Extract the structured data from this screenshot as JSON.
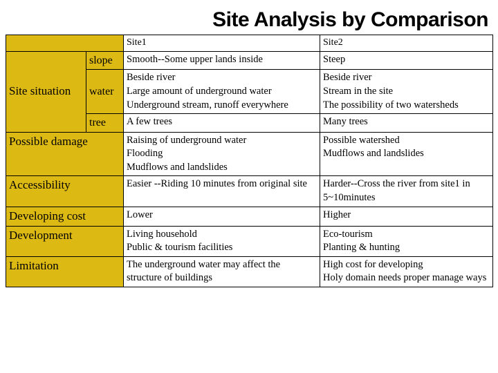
{
  "title": "Site Analysis by Comparison",
  "colors": {
    "header_bg": "#ddb914",
    "border": "#000000",
    "page_bg": "#ffffff",
    "text": "#000000"
  },
  "columns": {
    "site1": "Site1",
    "site2": "Site2"
  },
  "rows": {
    "site_situation": {
      "label": "Site situation",
      "sub": {
        "slope": {
          "label": "slope",
          "site1": "Smooth--Some upper lands inside",
          "site2": "Steep"
        },
        "water": {
          "label": "water",
          "site1": "Beside river\nLarge amount of underground water\nUnderground stream, runoff everywhere",
          "site2": "Beside river\nStream in the site\nThe possibility of two watersheds"
        },
        "tree": {
          "label": "tree",
          "site1": "A few trees",
          "site2": "Many trees"
        }
      }
    },
    "possible_damage": {
      "label": "Possible damage",
      "site1": "Raising of underground water\nFlooding\nMudflows and landslides",
      "site2": "Possible watershed\nMudflows and landslides"
    },
    "accessibility": {
      "label": "Accessibility",
      "site1": "Easier --Riding 10 minutes from original site",
      "site2": "Harder--Cross the river from site1 in 5~10minutes"
    },
    "developing_cost": {
      "label": "Developing cost",
      "site1": "Lower",
      "site2": "Higher"
    },
    "development": {
      "label": "Development",
      "site1": "Living household\nPublic & tourism facilities",
      "site2": "Eco-tourism\nPlanting & hunting"
    },
    "limitation": {
      "label": "Limitation",
      "site1": "The underground water may affect the structure of buildings",
      "site2": "High cost for developing\nHoly domain needs proper manage ways"
    }
  }
}
